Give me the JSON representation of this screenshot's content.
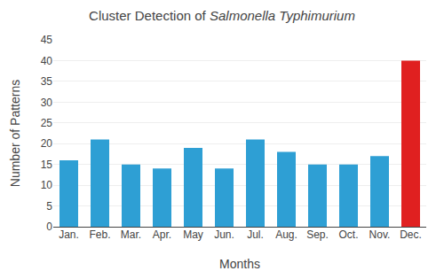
{
  "chart_data": {
    "type": "bar",
    "title": "Cluster Detection of Salmonella Typhimurium",
    "xlabel": "Months",
    "ylabel": "Number of Patterns",
    "categories": [
      "Jan.",
      "Feb.",
      "Mar.",
      "Apr.",
      "May",
      "Jun.",
      "Jul.",
      "Aug.",
      "Sep.",
      "Oct.",
      "Nov.",
      "Dec."
    ],
    "values": [
      16,
      21,
      15,
      14,
      19,
      14,
      21,
      18,
      15,
      15,
      17,
      40
    ],
    "colors": [
      "#2e9fd4",
      "#2e9fd4",
      "#2e9fd4",
      "#2e9fd4",
      "#2e9fd4",
      "#2e9fd4",
      "#2e9fd4",
      "#2e9fd4",
      "#2e9fd4",
      "#2e9fd4",
      "#2e9fd4",
      "#e02020"
    ],
    "ylim": [
      0,
      45
    ],
    "yticks": [
      0,
      5,
      10,
      15,
      20,
      25,
      30,
      35,
      40,
      45
    ],
    "grid": true
  }
}
